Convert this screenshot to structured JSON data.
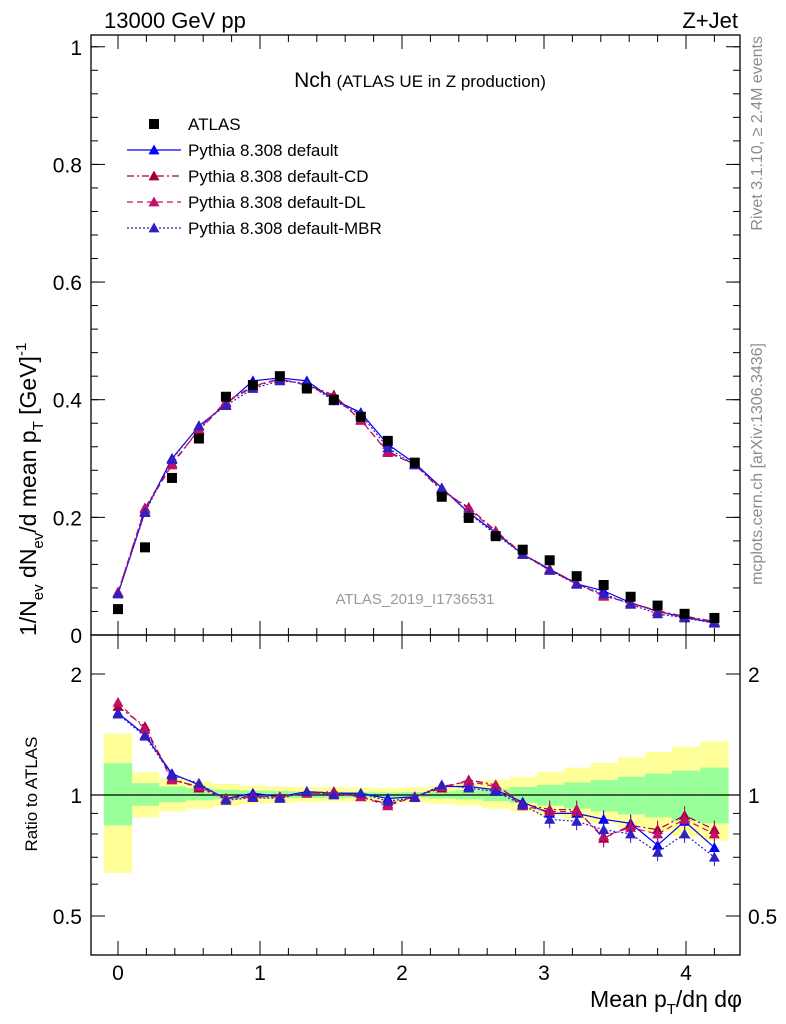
{
  "header": {
    "energy_label": "13000 GeV pp",
    "process_label": "Z+Jet"
  },
  "side_labels": {
    "rivet": "Rivet 3.1.10, ≥ 2.4M events",
    "mcplots": "mcplots.cern.ch [arXiv:1306.3436]"
  },
  "watermark": "ATLAS_2019_I1736531",
  "chart_data": [
    {
      "type": "scatter",
      "panel": "main",
      "title_main": "Nch",
      "title_sub": "(ATLAS UE in Z production)",
      "ylabel": "1/N_ev dN_ev/d mean p_T [GeV]^-1",
      "xlim": [
        -0.2,
        4.4
      ],
      "ylim": [
        0,
        1.02
      ],
      "yticks": [
        0,
        0.2,
        0.4,
        0.6,
        0.8,
        1
      ],
      "ytick_labels": [
        "0",
        "0.2",
        "0.4",
        "0.6",
        "0.8",
        "1"
      ],
      "x": [
        0,
        0.19,
        0.38,
        0.57,
        0.76,
        0.95,
        1.14,
        1.33,
        1.52,
        1.71,
        1.9,
        2.09,
        2.28,
        2.47,
        2.66,
        2.85,
        3.04,
        3.23,
        3.42,
        3.61,
        3.8,
        3.99,
        4.2
      ],
      "data": {
        "name": "ATLAS",
        "color": "#000000",
        "values": [
          0.044,
          0.149,
          0.267,
          0.334,
          0.405,
          0.425,
          0.44,
          0.419,
          0.4,
          0.371,
          0.33,
          0.293,
          0.235,
          0.199,
          0.168,
          0.145,
          0.127,
          0.1,
          0.085,
          0.065,
          0.05,
          0.036,
          0.029
        ]
      },
      "series": [
        {
          "name": "Pythia 8.308 default",
          "color": "#0000ff",
          "dash": "solid",
          "values": [
            0.07,
            0.21,
            0.3,
            0.355,
            0.392,
            0.432,
            0.437,
            0.432,
            0.4,
            0.378,
            0.324,
            0.292,
            0.25,
            0.208,
            0.174,
            0.137,
            0.112,
            0.087,
            0.075,
            0.055,
            0.04,
            0.03,
            0.021
          ]
        },
        {
          "name": "Pythia 8.308 default-CD",
          "color": "#a00040",
          "dash": "dashdot",
          "values": [
            0.072,
            0.216,
            0.292,
            0.348,
            0.395,
            0.422,
            0.435,
            0.425,
            0.408,
            0.365,
            0.312,
            0.29,
            0.245,
            0.217,
            0.177,
            0.138,
            0.112,
            0.088,
            0.066,
            0.055,
            0.041,
            0.032,
            0.023
          ]
        },
        {
          "name": "Pythia 8.308 default-DL",
          "color": "#c0106a",
          "dash": "dashed",
          "values": [
            0.073,
            0.214,
            0.289,
            0.35,
            0.397,
            0.423,
            0.436,
            0.424,
            0.405,
            0.366,
            0.31,
            0.29,
            0.248,
            0.214,
            0.176,
            0.137,
            0.11,
            0.087,
            0.067,
            0.054,
            0.04,
            0.031,
            0.022
          ]
        },
        {
          "name": "Pythia 8.308 default-MBR",
          "color": "#3020c0",
          "dash": "dotted",
          "values": [
            0.07,
            0.208,
            0.298,
            0.356,
            0.39,
            0.419,
            0.432,
            0.428,
            0.398,
            0.375,
            0.318,
            0.289,
            0.25,
            0.207,
            0.171,
            0.137,
            0.11,
            0.086,
            0.07,
            0.052,
            0.036,
            0.029,
            0.02
          ]
        }
      ]
    },
    {
      "type": "line",
      "panel": "ratio",
      "xlabel": "Mean p_T/dη dφ",
      "ylabel": "Ratio to ATLAS",
      "xticks": [
        0,
        1,
        2,
        3,
        4
      ],
      "xtick_labels": [
        "0",
        "1",
        "2",
        "3",
        "4"
      ],
      "yticks": [
        0.5,
        1,
        2
      ],
      "ytick_labels": [
        "0.5",
        "1",
        "2"
      ],
      "ylim": [
        0.38,
        2.3
      ],
      "yscale": "log",
      "band_edges": [
        -0.1,
        0.1,
        0.29,
        0.48,
        0.67,
        0.86,
        1.05,
        1.24,
        1.43,
        1.62,
        1.81,
        2.0,
        2.19,
        2.38,
        2.57,
        2.76,
        2.95,
        3.14,
        3.33,
        3.52,
        3.71,
        3.9,
        4.1,
        4.3
      ],
      "band_stat": {
        "color": "#99ff99",
        "lower": [
          0.84,
          0.94,
          0.96,
          0.97,
          0.975,
          0.98,
          0.982,
          0.983,
          0.984,
          0.985,
          0.986,
          0.985,
          0.98,
          0.975,
          0.965,
          0.955,
          0.94,
          0.925,
          0.91,
          0.895,
          0.88,
          0.86,
          0.85
        ],
        "upper": [
          1.2,
          1.07,
          1.05,
          1.04,
          1.03,
          1.025,
          1.022,
          1.02,
          1.018,
          1.016,
          1.015,
          1.017,
          1.02,
          1.027,
          1.036,
          1.047,
          1.06,
          1.075,
          1.09,
          1.11,
          1.13,
          1.15,
          1.17
        ]
      },
      "band_total": {
        "color": "#ffff99",
        "lower": [
          0.64,
          0.88,
          0.91,
          0.925,
          0.94,
          0.95,
          0.955,
          0.96,
          0.962,
          0.962,
          0.96,
          0.958,
          0.95,
          0.94,
          0.925,
          0.91,
          0.89,
          0.87,
          0.85,
          0.83,
          0.81,
          0.79,
          0.77
        ],
        "upper": [
          1.42,
          1.14,
          1.1,
          1.08,
          1.065,
          1.055,
          1.05,
          1.047,
          1.045,
          1.043,
          1.042,
          1.045,
          1.055,
          1.07,
          1.09,
          1.11,
          1.14,
          1.17,
          1.2,
          1.24,
          1.28,
          1.32,
          1.36
        ]
      },
      "series": [
        {
          "name": "Pythia 8.308 default",
          "color": "#0000ff",
          "dash": "solid",
          "values": [
            1.6,
            1.41,
            1.13,
            1.06,
            0.98,
            1.01,
            0.99,
            1.02,
            1.01,
            1.01,
            0.98,
            0.99,
            1.05,
            1.05,
            1.03,
            0.96,
            0.9,
            0.9,
            0.87,
            0.85,
            0.75,
            0.86,
            0.74
          ]
        },
        {
          "name": "Pythia 8.308 default-CD",
          "color": "#a00040",
          "dash": "dashdot",
          "values": [
            1.66,
            1.48,
            1.1,
            1.04,
            0.98,
            0.99,
            0.99,
            1.01,
            1.02,
            0.99,
            0.95,
            0.99,
            1.04,
            1.09,
            1.06,
            0.95,
            0.92,
            0.92,
            0.78,
            0.84,
            0.82,
            0.89,
            0.82
          ]
        },
        {
          "name": "Pythia 8.308 default-DL",
          "color": "#c0106a",
          "dash": "dashed",
          "values": [
            1.7,
            1.46,
            1.09,
            1.05,
            0.98,
            0.995,
            0.99,
            1.01,
            1.01,
            0.99,
            0.94,
            0.99,
            1.05,
            1.08,
            1.05,
            0.94,
            0.91,
            0.91,
            0.79,
            0.83,
            0.8,
            0.87,
            0.8
          ]
        },
        {
          "name": "Pythia 8.308 default-MBR",
          "color": "#3020c0",
          "dash": "dotted",
          "values": [
            1.59,
            1.4,
            1.12,
            1.07,
            0.97,
            0.985,
            0.98,
            1.02,
            1.0,
            1.01,
            0.965,
            0.985,
            1.06,
            1.04,
            1.02,
            0.945,
            0.87,
            0.86,
            0.82,
            0.8,
            0.72,
            0.8,
            0.7
          ]
        }
      ]
    }
  ]
}
